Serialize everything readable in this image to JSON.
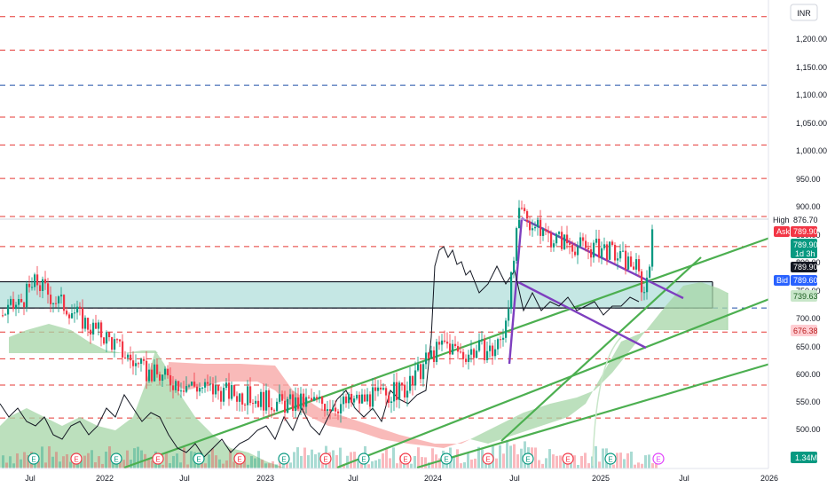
{
  "header": {
    "currency": "INR"
  },
  "price_axis": {
    "ticks": [
      "1,200.00",
      "1,150.00",
      "1,100.00",
      "1,050.00",
      "1,000.00",
      "950.00",
      "900.00",
      "850.00",
      "800.00",
      "750.00",
      "700.00",
      "650.00",
      "600.00",
      "550.00",
      "500.00"
    ],
    "min": 450,
    "max": 1240
  },
  "time_axis": {
    "ticks": [
      "Jul",
      "2022",
      "Jul",
      "2023",
      "Jul",
      "2024",
      "Jul",
      "2025",
      "Jul",
      "2026"
    ]
  },
  "badges": {
    "high_label": "High",
    "high_value": "876.70",
    "ask_label": "Ask",
    "ask_value": "789.90",
    "last_price": "789.90",
    "countdown": "1d 3h",
    "current": "789.90",
    "bid_label": "Bid",
    "bid_value": "789.60",
    "cloud_top": "739.63",
    "cloud_bottom": "676.38",
    "volume": "1.34M"
  },
  "colors": {
    "up": "#089981",
    "down": "#f23645",
    "cloud_green": "#a5d6a7",
    "cloud_red": "#f7a9a7",
    "zone": "#b2dfdb",
    "trendline": "#4caf50",
    "wedge": "#7e3fbf",
    "red_dash": "#e53935",
    "blue_dash": "#1e4fa8"
  },
  "event_markers": [
    "E",
    "E",
    "E",
    "E",
    "E",
    "E",
    "E",
    "E",
    "E",
    "E",
    "E",
    "E",
    "E",
    "E",
    "E",
    "E",
    "E",
    "E",
    "E",
    "E"
  ],
  "chart_data": {
    "type": "candlestick",
    "x_range": [
      "2021-06",
      "2026-01"
    ],
    "y_range": [
      450,
      1240
    ],
    "horizontal_levels_red": [
      1230,
      1175,
      1115,
      995,
      945,
      885,
      817,
      763,
      610,
      562,
      515,
      456
    ],
    "horizontal_levels_blue": [
      1052,
      653
    ],
    "demand_zone": {
      "top": 700,
      "bottom": 653
    },
    "support_box": {
      "top": 700,
      "bottom": 653
    },
    "last": 789.9,
    "high": 876.7,
    "cloud_top": 739.63,
    "cloud_bottom": 676.38,
    "volume_last": "1.34M"
  }
}
